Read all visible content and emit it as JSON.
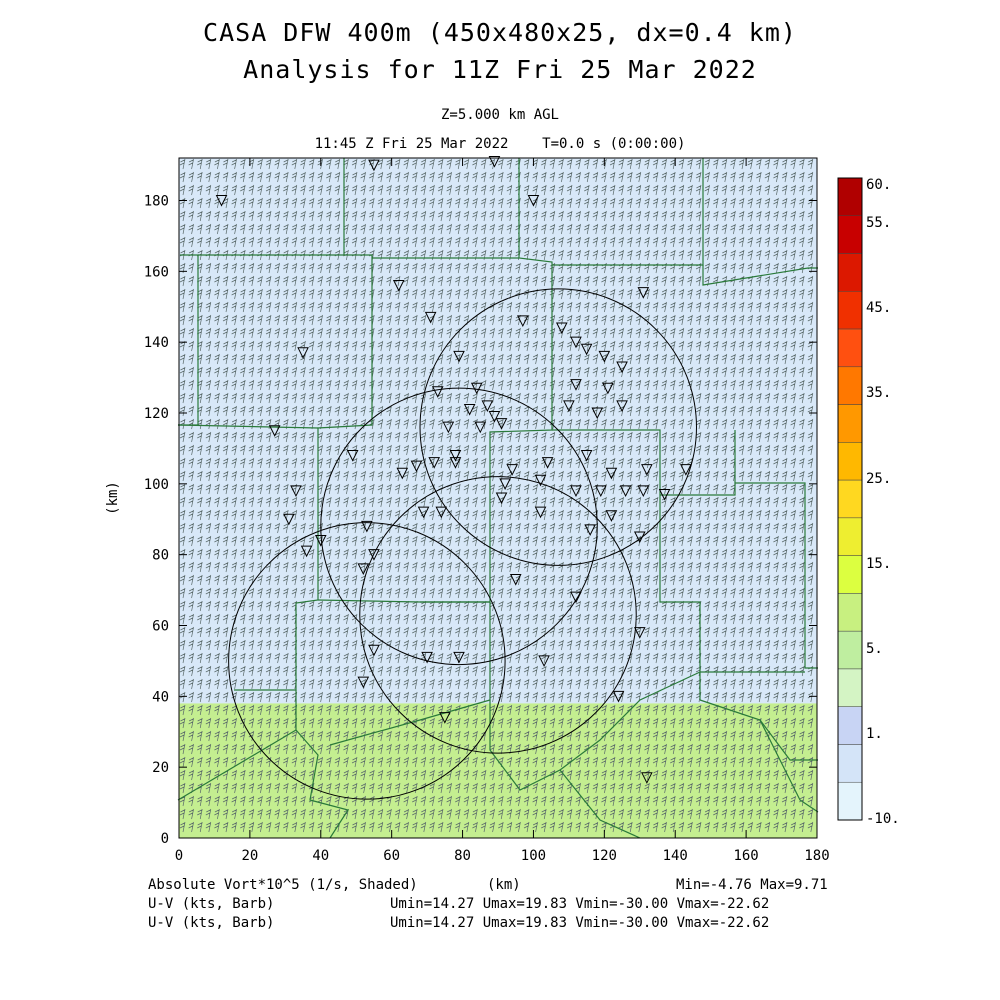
{
  "header": {
    "title_line1": "CASA DFW 400m (450x480x25, dx=0.4 km)",
    "title_line2": "Analysis for 11Z Fri 25 Mar 2022",
    "level": "Z=5.000 km AGL",
    "valid_time": "11:45 Z Fri 25 Mar 2022    T=0.0 s (0:00:00)"
  },
  "axes": {
    "x_ticks": [
      "0",
      "20",
      "40",
      "60",
      "80",
      "100",
      "120",
      "140",
      "160",
      "180"
    ],
    "y_ticks": [
      "0",
      "20",
      "40",
      "60",
      "80",
      "100",
      "120",
      "140",
      "160",
      "180"
    ],
    "x_label": "(km)",
    "y_label": "(km)",
    "x_range": [
      0,
      180
    ],
    "y_range": [
      0,
      192
    ]
  },
  "colorbar": {
    "labels": [
      "60.",
      "55.",
      "45.",
      "35.",
      "25.",
      "15.",
      "5.",
      "1.",
      "-10."
    ],
    "colors": [
      "#b00000",
      "#c80000",
      "#dc1800",
      "#f03000",
      "#ff5010",
      "#ff7800",
      "#ff9800",
      "#ffb800",
      "#ffd820",
      "#eeee30",
      "#dcff40",
      "#c8f080",
      "#bfeea0",
      "#d4f4c4",
      "#c8d4f4",
      "#d4e4f8",
      "#e4f4fc"
    ]
  },
  "shading": {
    "upper_color": "#d8e8f8",
    "lower_color": "#c4ee90",
    "boundary_km": 38
  },
  "footer": {
    "field_label": "Absolute Vort*10^5 (1/s, Shaded)",
    "x_unit": "(km)",
    "minmax": "Min=-4.76 Max=9.71",
    "uv1_label": "U-V (kts, Barb)",
    "uv1_stats": "Umin=14.27 Umax=19.83 Vmin=-30.00 Vmax=-22.62",
    "uv2_label": "U-V (kts, Barb)",
    "uv2_stats": "Umin=14.27 Umax=19.83 Vmin=-30.00 Vmax=-22.62"
  },
  "radar_rings": [
    {
      "x_km": 107,
      "y_km": 116,
      "r_km": 39
    },
    {
      "x_km": 79,
      "y_km": 88,
      "r_km": 39
    },
    {
      "x_km": 90,
      "y_km": 63,
      "r_km": 39
    },
    {
      "x_km": 53,
      "y_km": 50,
      "r_km": 39
    }
  ],
  "station_markers": [
    [
      12,
      180
    ],
    [
      55,
      190
    ],
    [
      89,
      191
    ],
    [
      100,
      180
    ],
    [
      62,
      156
    ],
    [
      71,
      147
    ],
    [
      131,
      154
    ],
    [
      35,
      137
    ],
    [
      79,
      136
    ],
    [
      97,
      146
    ],
    [
      108,
      144
    ],
    [
      112,
      140
    ],
    [
      115,
      138
    ],
    [
      120,
      136
    ],
    [
      125,
      133
    ],
    [
      73,
      126
    ],
    [
      84,
      127
    ],
    [
      82,
      121
    ],
    [
      87,
      122
    ],
    [
      89,
      119
    ],
    [
      112,
      128
    ],
    [
      121,
      127
    ],
    [
      118,
      120
    ],
    [
      125,
      122
    ],
    [
      110,
      122
    ],
    [
      27,
      115
    ],
    [
      76,
      116
    ],
    [
      85,
      116
    ],
    [
      91,
      117
    ],
    [
      78,
      108
    ],
    [
      94,
      104
    ],
    [
      104,
      106
    ],
    [
      115,
      108
    ],
    [
      122,
      103
    ],
    [
      132,
      104
    ],
    [
      49,
      108
    ],
    [
      67,
      105
    ],
    [
      72,
      106
    ],
    [
      78,
      106
    ],
    [
      92,
      100
    ],
    [
      102,
      101
    ],
    [
      112,
      98
    ],
    [
      119,
      98
    ],
    [
      126,
      98
    ],
    [
      131,
      98
    ],
    [
      143,
      104
    ],
    [
      137,
      97
    ],
    [
      33,
      98
    ],
    [
      31,
      90
    ],
    [
      36,
      81
    ],
    [
      40,
      84
    ],
    [
      53,
      88
    ],
    [
      55,
      80
    ],
    [
      63,
      103
    ],
    [
      69,
      92
    ],
    [
      74,
      92
    ],
    [
      91,
      96
    ],
    [
      102,
      92
    ],
    [
      122,
      91
    ],
    [
      116,
      87
    ],
    [
      52,
      76
    ],
    [
      95,
      73
    ],
    [
      130,
      85
    ],
    [
      55,
      53
    ],
    [
      70,
      51
    ],
    [
      79,
      51
    ],
    [
      103,
      50
    ],
    [
      130,
      58
    ],
    [
      52,
      44
    ],
    [
      75,
      34
    ],
    [
      112,
      68
    ],
    [
      124,
      40
    ],
    [
      132,
      17
    ]
  ]
}
